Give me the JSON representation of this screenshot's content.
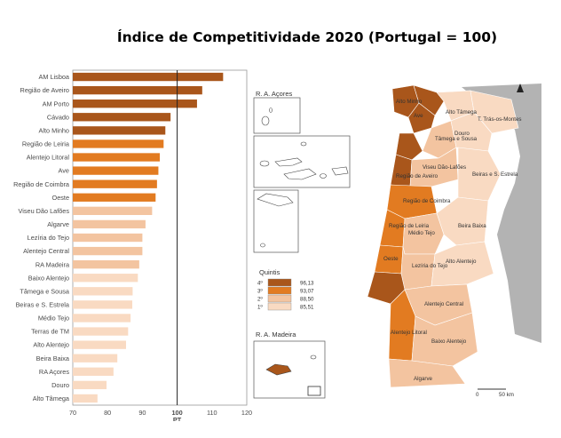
{
  "title": "Índice de Competitividade 2020 (Portugal = 100)",
  "chart_data": {
    "type": "bar",
    "orientation": "horizontal",
    "categories": [
      "AM Lisboa",
      "Região de Aveiro",
      "AM Porto",
      "Cávado",
      "Alto Minho",
      "Região de Leiria",
      "Alentejo Litoral",
      "Ave",
      "Região de Coimbra",
      "Oeste",
      "Viseu Dão Lafões",
      "Algarve",
      "Lezíria do Tejo",
      "Alentejo Central",
      "RA Madeira",
      "Baixo Alentejo",
      "Tâmega e Sousa",
      "Beiras e S. Estrela",
      "Médio Tejo",
      "Terras de TM",
      "Alto Alentejo",
      "Beira Baixa",
      "RA Açores",
      "Douro",
      "Alto Tâmega"
    ],
    "values": [
      113.2,
      107.2,
      105.7,
      98.1,
      96.6,
      96.1,
      95.0,
      94.6,
      94.2,
      93.8,
      92.8,
      90.9,
      90.0,
      90.0,
      89.1,
      88.7,
      87.2,
      87.1,
      86.6,
      85.9,
      85.3,
      82.8,
      81.7,
      79.7,
      77.1
    ],
    "quintile": [
      4,
      4,
      4,
      4,
      4,
      3,
      3,
      3,
      3,
      3,
      2,
      2,
      2,
      2,
      2,
      1,
      1,
      1,
      1,
      1,
      0,
      0,
      0,
      0,
      0
    ],
    "colors": [
      "#f9dac2",
      "#f3c4a0",
      "#e27b21",
      "#a9561b"
    ],
    "xlim": [
      70,
      120
    ],
    "xticks": [
      "70",
      "80",
      "90",
      "100",
      "110",
      "120"
    ],
    "reference_x": 100,
    "xlabel": "PT",
    "grid": false
  },
  "map": {
    "insert_acores": "R. A. Açores",
    "insert_madeira": "R. A. Madeira",
    "legend_title": "Quintis",
    "legend_items": [
      {
        "rank": "4º",
        "value": "96,13",
        "color": "#a9561b"
      },
      {
        "rank": "3º",
        "value": "93,07",
        "color": "#e27b21"
      },
      {
        "rank": "2º",
        "value": "88,50",
        "color": "#f3c4a0"
      },
      {
        "rank": "1º",
        "value": "85,51",
        "color": "#f9dac2"
      }
    ],
    "scale": {
      "zero": "0",
      "end": "50 km"
    },
    "regions": [
      "Alto Minho",
      "Ave",
      "Alto Tâmega",
      "T. Trás-os-Montes",
      "Tâmega e Sousa",
      "Douro",
      "Viseu Dão-Lafões",
      "Beiras e S. Estrela",
      "Região de Aveiro",
      "Região de Coimbra",
      "Região de Leiria",
      "Beira Baixa",
      "Médio Tejo",
      "Oeste",
      "Lezíria do Tejo",
      "Alto Alentejo",
      "Alentejo Central",
      "Alentejo Litoral",
      "Baixo Alentejo",
      "Algarve"
    ]
  }
}
